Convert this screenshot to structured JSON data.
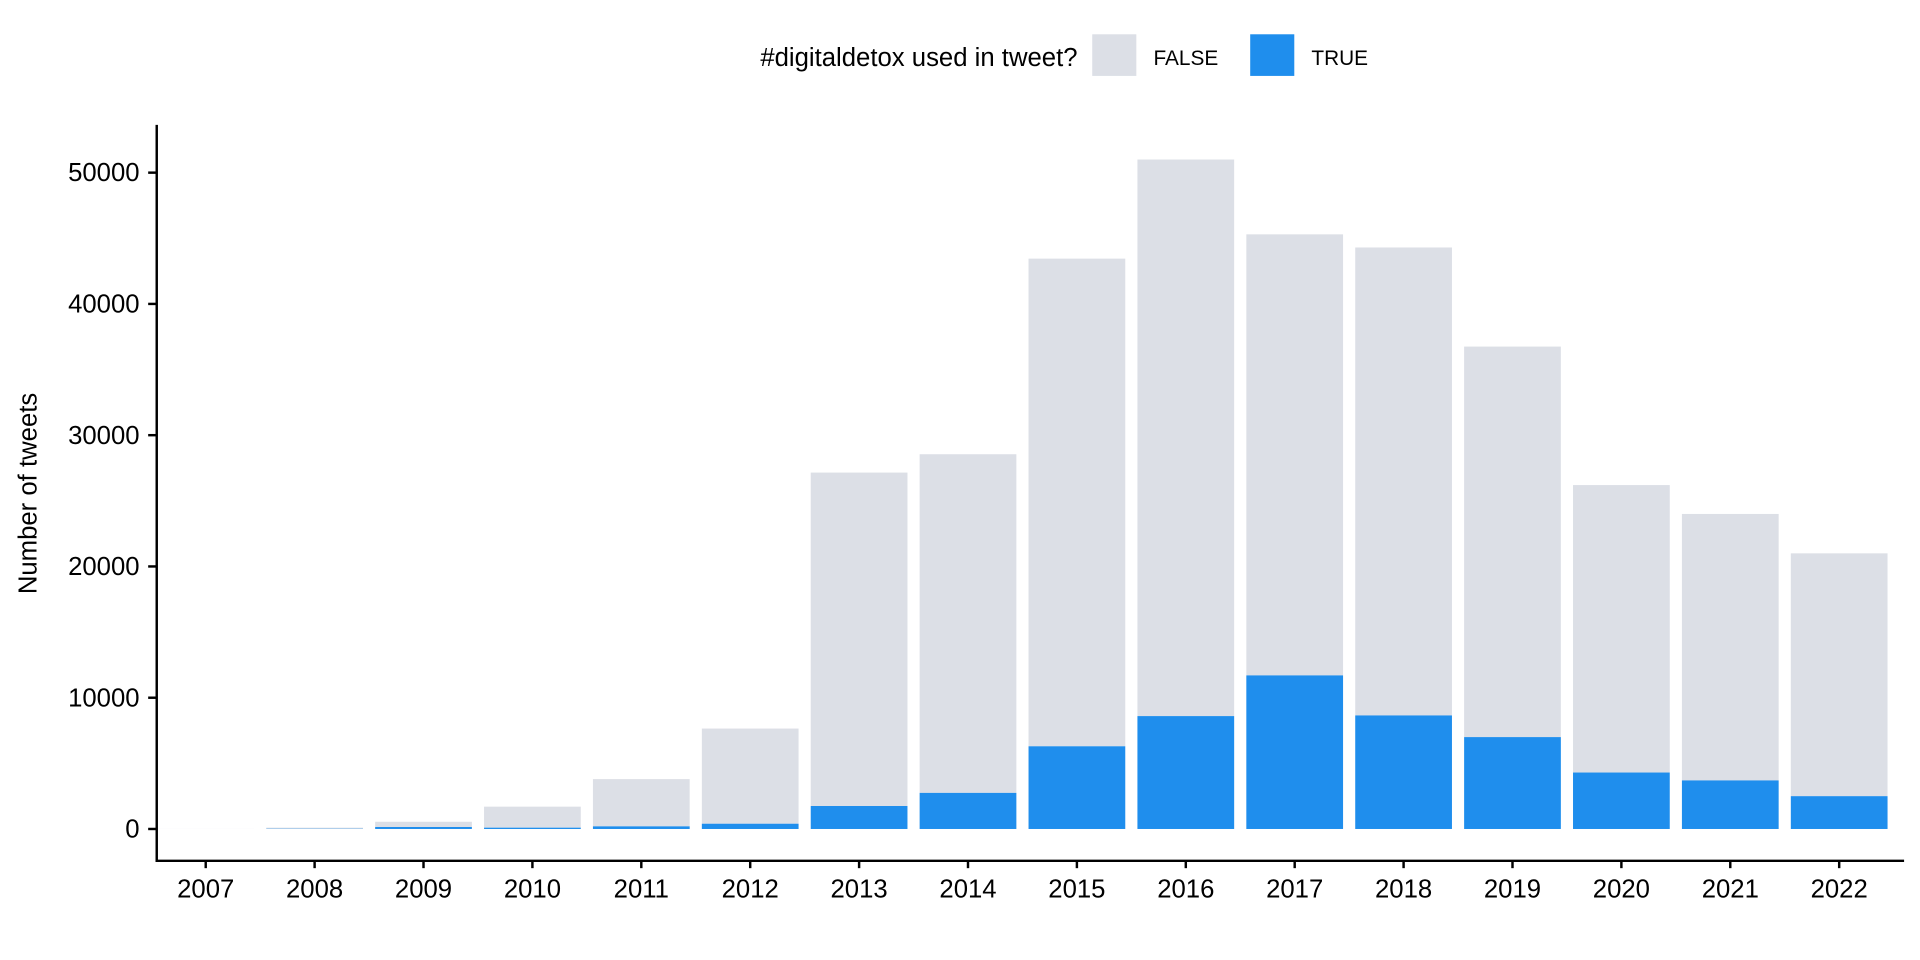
{
  "chart_data": {
    "type": "bar",
    "stacked": true,
    "title": "",
    "xlabel": "",
    "ylabel": "Number of tweets",
    "ylim": [
      -2400,
      53500
    ],
    "yticks": [
      0,
      10000,
      20000,
      30000,
      40000,
      50000
    ],
    "ytick_labels": [
      "0",
      "10000",
      "20000",
      "30000",
      "40000",
      "50000"
    ],
    "grid": false,
    "legend": {
      "title": "#digitaldetox used in tweet?",
      "position": "top",
      "entries": [
        "FALSE",
        "TRUE"
      ]
    },
    "categories": [
      "2007",
      "2008",
      "2009",
      "2010",
      "2011",
      "2012",
      "2013",
      "2014",
      "2015",
      "2016",
      "2017",
      "2018",
      "2019",
      "2020",
      "2021",
      "2022"
    ],
    "series": [
      {
        "name": "TRUE",
        "color": "#1f8eed",
        "values": [
          0,
          20,
          150,
          100,
          200,
          400,
          1750,
          2750,
          6300,
          8600,
          11700,
          8650,
          7000,
          4300,
          3700,
          2500
        ]
      },
      {
        "name": "FALSE",
        "color": "#dcdfe6",
        "values": [
          5,
          80,
          400,
          1600,
          3600,
          7250,
          25400,
          25800,
          37150,
          42400,
          33600,
          35650,
          29750,
          21900,
          20300,
          18500
        ]
      }
    ]
  }
}
